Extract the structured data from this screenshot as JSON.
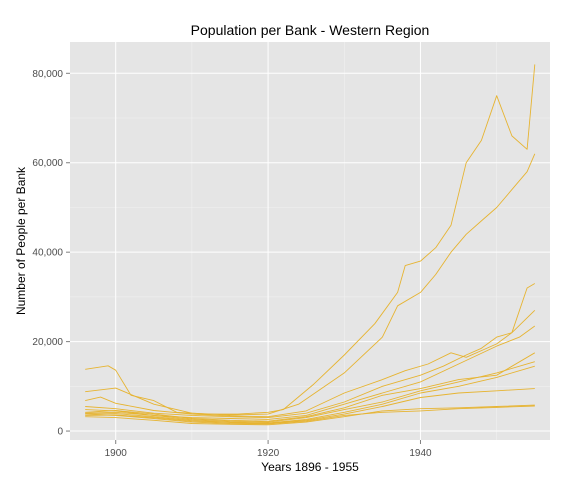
{
  "chart_data": {
    "type": "line",
    "title": "Population per Bank - Western Region",
    "xlabel": "Years 1896 - 1955",
    "ylabel": "Number of People per Bank",
    "xlim": [
      1894,
      1957
    ],
    "ylim": [
      -2000,
      87000
    ],
    "x_ticks": [
      1900,
      1920,
      1940
    ],
    "x_tick_labels": [
      "1900",
      "1920",
      "1940"
    ],
    "y_ticks": [
      0,
      20000,
      40000,
      60000,
      80000
    ],
    "y_tick_labels": [
      "0",
      "20,000",
      "40,000",
      "60,000",
      "80,000"
    ],
    "grid": true,
    "legend": "none",
    "colors": {
      "line": "#e6b432",
      "panel_background": "#e5e5e5",
      "grid_major": "#ffffff",
      "grid_minor": "#f2f2f2",
      "tick_text": "#4d4d4d"
    },
    "series": [
      {
        "x": [
          1896,
          1899,
          1900,
          1902,
          1905,
          1908,
          1912,
          1916,
          1920,
          1922,
          1926,
          1930,
          1934,
          1937,
          1938,
          1940,
          1942,
          1944,
          1946,
          1948,
          1950,
          1952,
          1954,
          1955
        ],
        "y": [
          13800,
          14600,
          13600,
          8000,
          6800,
          4200,
          3800,
          3800,
          4200,
          4800,
          10500,
          17000,
          24000,
          31000,
          37000,
          38000,
          41000,
          46000,
          60000,
          65000,
          75000,
          66000,
          63000,
          82000
        ]
      },
      {
        "x": [
          1896,
          1900,
          1905,
          1910,
          1915,
          1920,
          1924,
          1930,
          1935,
          1937,
          1940,
          1942,
          1944,
          1946,
          1948,
          1950,
          1952,
          1954,
          1955
        ],
        "y": [
          8800,
          9600,
          6000,
          4000,
          3600,
          3800,
          6000,
          13000,
          21000,
          28000,
          31000,
          35000,
          40000,
          44000,
          47000,
          50000,
          54000,
          58000,
          62000
        ]
      },
      {
        "x": [
          1896,
          1898,
          1900,
          1905,
          1910,
          1915,
          1920,
          1925,
          1930,
          1935,
          1938,
          1941,
          1944,
          1946,
          1948,
          1950,
          1952,
          1954,
          1955
        ],
        "y": [
          6800,
          7600,
          6200,
          4600,
          3800,
          3400,
          3200,
          4500,
          8500,
          11500,
          13500,
          15000,
          17500,
          16500,
          18000,
          19500,
          22000,
          32000,
          33000
        ]
      },
      {
        "x": [
          1896,
          1900,
          1905,
          1910,
          1915,
          1920,
          1925,
          1930,
          1935,
          1940,
          1943,
          1946,
          1948,
          1950,
          1952,
          1955
        ],
        "y": [
          5500,
          5000,
          4000,
          3500,
          3200,
          3000,
          4000,
          6500,
          10000,
          12500,
          14500,
          17000,
          18500,
          21000,
          22000,
          27000
        ]
      },
      {
        "x": [
          1896,
          1900,
          1905,
          1910,
          1915,
          1920,
          1925,
          1930,
          1935,
          1940,
          1945,
          1950,
          1953,
          1955
        ],
        "y": [
          4800,
          4500,
          3500,
          3000,
          2800,
          2600,
          3500,
          6000,
          8500,
          11000,
          15000,
          19000,
          21000,
          23500
        ]
      },
      {
        "x": [
          1896,
          1900,
          1905,
          1910,
          1915,
          1920,
          1925,
          1930,
          1935,
          1940,
          1945,
          1950,
          1955
        ],
        "y": [
          4200,
          4600,
          3800,
          2800,
          2400,
          2200,
          3200,
          5200,
          8000,
          9500,
          11500,
          12500,
          17500
        ]
      },
      {
        "x": [
          1896,
          1900,
          1905,
          1910,
          1915,
          1920,
          1925,
          1930,
          1935,
          1940,
          1945,
          1950,
          1955
        ],
        "y": [
          4000,
          4200,
          3500,
          2600,
          2200,
          2000,
          3000,
          4800,
          6500,
          9000,
          11000,
          13000,
          15500
        ]
      },
      {
        "x": [
          1896,
          1900,
          1905,
          1910,
          1915,
          1920,
          1925,
          1930,
          1935,
          1940,
          1945,
          1950,
          1955
        ],
        "y": [
          3800,
          3900,
          3200,
          2400,
          2000,
          1800,
          2600,
          4200,
          6000,
          8500,
          10000,
          12000,
          14500
        ]
      },
      {
        "x": [
          1896,
          1900,
          1905,
          1910,
          1915,
          1920,
          1925,
          1930,
          1935,
          1940,
          1945,
          1950,
          1955
        ],
        "y": [
          3500,
          3600,
          3000,
          2200,
          1900,
          1700,
          2400,
          3800,
          5500,
          7500,
          8500,
          9000,
          9500
        ]
      },
      {
        "x": [
          1896,
          1900,
          1905,
          1910,
          1915,
          1920,
          1925,
          1930,
          1935,
          1940,
          1945,
          1950,
          1955
        ],
        "y": [
          3200,
          3000,
          2400,
          1700,
          1500,
          1400,
          2000,
          3200,
          4500,
          5000,
          5200,
          5500,
          5800
        ]
      },
      {
        "x": [
          1896,
          1900,
          1905,
          1910,
          1915,
          1920,
          1925,
          1930,
          1935,
          1940,
          1945,
          1950,
          1955
        ],
        "y": [
          3800,
          3500,
          2800,
          2000,
          1700,
          1600,
          2200,
          3500,
          4200,
          4500,
          5000,
          5300,
          5600
        ]
      }
    ]
  }
}
